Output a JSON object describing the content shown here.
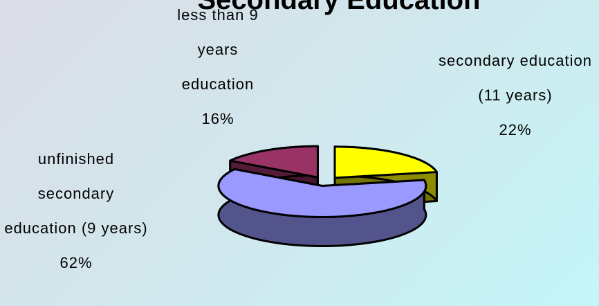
{
  "chart_data": {
    "type": "pie3d",
    "title": "Secondary Education",
    "categories": [
      "secondary education (11 years)",
      "unfinished secondary education (9 years)",
      "less than 9 years education"
    ],
    "values": [
      22,
      62,
      16
    ],
    "value_labels": [
      "22%",
      "62%",
      "16%"
    ],
    "colors": [
      "#ffff00",
      "#9999ff",
      "#993366"
    ]
  }
}
